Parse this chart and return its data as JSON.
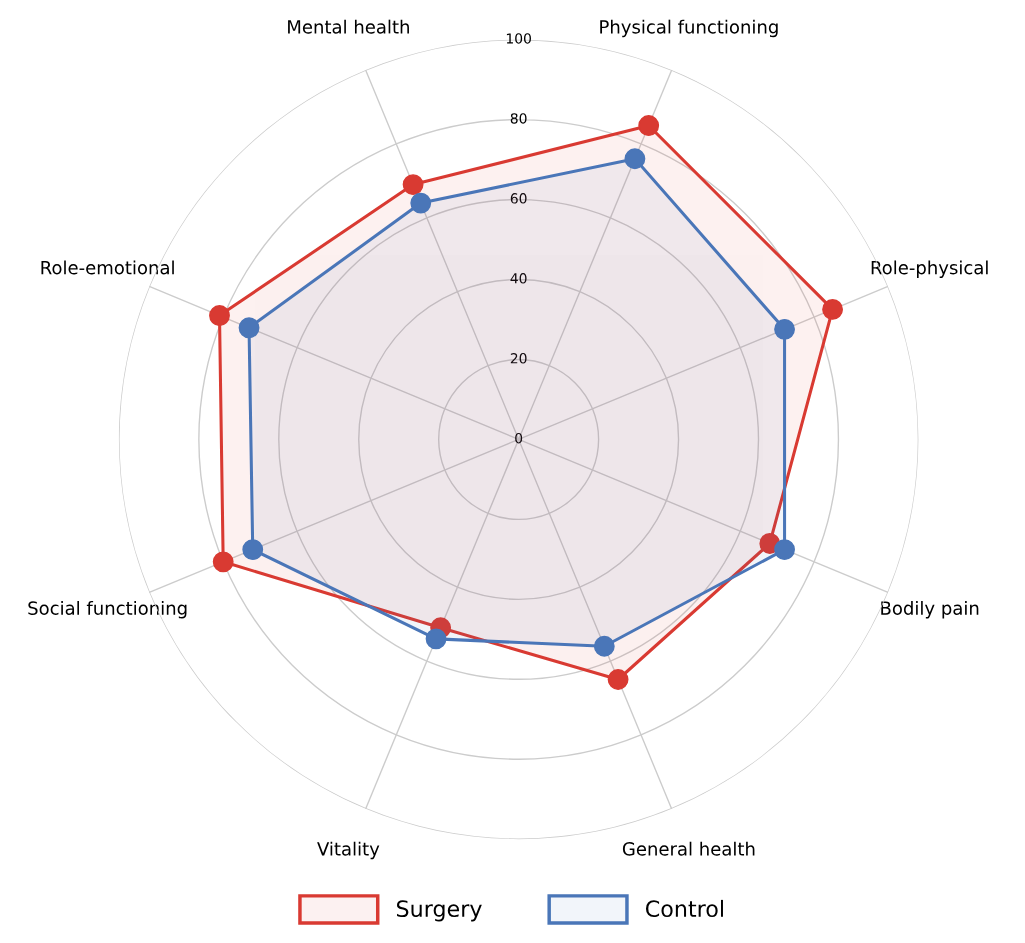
{
  "chart_data": {
    "type": "radar",
    "categories": [
      "Physical functioning",
      "Role-physical",
      "Bodily pain",
      "General health",
      "Vitality",
      "Social functioning",
      "Role-emotional",
      "Mental health"
    ],
    "series": [
      {
        "name": "Surgery",
        "color": "#d93a32",
        "values": [
          85,
          85,
          68,
          65,
          51,
          80,
          81,
          69
        ]
      },
      {
        "name": "Control",
        "color": "#4a76b8",
        "values": [
          76,
          72,
          72,
          56,
          54,
          72,
          73,
          64
        ]
      }
    ],
    "ylim": [
      0,
      100
    ],
    "yticks": [
      0,
      20,
      40,
      60,
      80,
      100
    ],
    "marker": "circle",
    "line_style": "solid",
    "grid": true,
    "legend": "bottom"
  }
}
